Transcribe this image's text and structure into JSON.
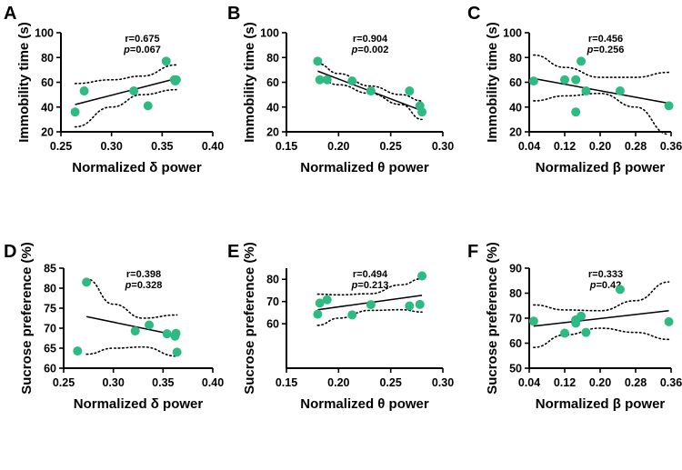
{
  "colors": {
    "point": "#2dbb83",
    "line": "#000000"
  },
  "chart_data": [
    {
      "panel": "A",
      "type": "scatter",
      "xlabel": "Normalized δ power",
      "ylabel": "Immobility time (s)",
      "xlim": [
        0.25,
        0.4
      ],
      "ylim": [
        20,
        100
      ],
      "xticks": [
        "0.25",
        "0.30",
        "0.35",
        "0.40"
      ],
      "xtick_values": [
        0.25,
        0.3,
        0.35,
        0.4
      ],
      "yticks": [
        "20",
        "40",
        "60",
        "80",
        "100"
      ],
      "ytick_values": [
        20,
        40,
        60,
        80,
        100
      ],
      "r_label": "r=0.675",
      "p_label": "=0.067",
      "points": [
        [
          0.264,
          36
        ],
        [
          0.273,
          53
        ],
        [
          0.322,
          53
        ],
        [
          0.336,
          41
        ],
        [
          0.354,
          77
        ],
        [
          0.362,
          62
        ],
        [
          0.363,
          61
        ],
        [
          0.364,
          62
        ]
      ],
      "fit": {
        "x": [
          0.264,
          0.364
        ],
        "y": [
          42,
          63
        ]
      },
      "ci_upper": {
        "x": [
          0.264,
          0.3,
          0.33,
          0.364
        ],
        "y": [
          59,
          62,
          65,
          74
        ]
      },
      "ci_lower": {
        "x": [
          0.264,
          0.3,
          0.33,
          0.364
        ],
        "y": [
          24,
          40,
          50,
          54
        ]
      }
    },
    {
      "panel": "B",
      "type": "scatter",
      "xlabel": "Normalized θ power",
      "ylabel": "Immobility time (s)",
      "xlim": [
        0.15,
        0.3
      ],
      "ylim": [
        20,
        100
      ],
      "xticks": [
        "0.15",
        "0.20",
        "0.25",
        "0.30"
      ],
      "xtick_values": [
        0.15,
        0.2,
        0.25,
        0.3
      ],
      "yticks": [
        "20",
        "40",
        "60",
        "80",
        "100"
      ],
      "ytick_values": [
        20,
        40,
        60,
        80,
        100
      ],
      "r_label": "r=0.904",
      "p_label": "=0.002",
      "points": [
        [
          0.18,
          77
        ],
        [
          0.182,
          62
        ],
        [
          0.189,
          62
        ],
        [
          0.213,
          61
        ],
        [
          0.231,
          53
        ],
        [
          0.268,
          53
        ],
        [
          0.278,
          41
        ],
        [
          0.28,
          36
        ]
      ],
      "fit": {
        "x": [
          0.18,
          0.28
        ],
        "y": [
          69,
          37
        ]
      },
      "ci_upper": {
        "x": [
          0.18,
          0.2,
          0.23,
          0.26,
          0.28
        ],
        "y": [
          75,
          67,
          57,
          50,
          45
        ]
      },
      "ci_lower": {
        "x": [
          0.18,
          0.2,
          0.23,
          0.26,
          0.28
        ],
        "y": [
          63,
          58,
          51,
          42,
          30
        ]
      }
    },
    {
      "panel": "C",
      "type": "scatter",
      "xlabel": "Normalized β power",
      "ylabel": "Immobility time (s)",
      "xlim": [
        0.04,
        0.36
      ],
      "ylim": [
        20,
        100
      ],
      "xticks": [
        "0.04",
        "0.12",
        "0.20",
        "0.28",
        "0.36"
      ],
      "xtick_values": [
        0.04,
        0.12,
        0.2,
        0.28,
        0.36
      ],
      "yticks": [
        "20",
        "40",
        "60",
        "80",
        "100"
      ],
      "ytick_values": [
        20,
        40,
        60,
        80,
        100
      ],
      "r_label": "r=0.456",
      "p_label": "=0.256",
      "points": [
        [
          0.05,
          61
        ],
        [
          0.12,
          62
        ],
        [
          0.145,
          62
        ],
        [
          0.145,
          36
        ],
        [
          0.157,
          77
        ],
        [
          0.168,
          53
        ],
        [
          0.245,
          53
        ],
        [
          0.355,
          41
        ]
      ],
      "fit": {
        "x": [
          0.05,
          0.355
        ],
        "y": [
          63,
          43
        ]
      },
      "ci_upper": {
        "x": [
          0.05,
          0.12,
          0.2,
          0.28,
          0.355
        ],
        "y": [
          82,
          72,
          64,
          64,
          68
        ]
      },
      "ci_lower": {
        "x": [
          0.05,
          0.12,
          0.2,
          0.28,
          0.355
        ],
        "y": [
          45,
          49,
          51,
          40,
          18
        ]
      }
    },
    {
      "panel": "D",
      "type": "scatter",
      "xlabel": "Normalized δ power",
      "ylabel": "Sucrose preference (%)",
      "xlim": [
        0.25,
        0.4
      ],
      "ylim": [
        60,
        85
      ],
      "xticks": [
        "0.25",
        "0.30",
        "0.35",
        "0.40"
      ],
      "xtick_values": [
        0.25,
        0.3,
        0.35,
        0.4
      ],
      "yticks": [
        "60",
        "65",
        "70",
        "75",
        "80",
        "85"
      ],
      "ytick_values": [
        60,
        65,
        70,
        75,
        80,
        85
      ],
      "r_label": "r=0.398",
      "p_label": "=0.328",
      "points": [
        [
          0.264,
          64.3
        ],
        [
          0.273,
          81.5
        ],
        [
          0.322,
          69.3
        ],
        [
          0.336,
          70.8
        ],
        [
          0.354,
          68.6
        ],
        [
          0.362,
          68.0
        ],
        [
          0.363,
          68.7
        ],
        [
          0.364,
          64.0
        ]
      ],
      "fit": {
        "x": [
          0.273,
          0.364
        ],
        "y": [
          72.9,
          68.2
        ]
      },
      "ci_upper": {
        "x": [
          0.273,
          0.3,
          0.33,
          0.364
        ],
        "y": [
          82.3,
          76.0,
          72.5,
          73.3
        ]
      },
      "ci_lower": {
        "x": [
          0.273,
          0.3,
          0.33,
          0.364
        ],
        "y": [
          63.5,
          65.0,
          65.3,
          63.0
        ]
      }
    },
    {
      "panel": "E",
      "type": "scatter",
      "xlabel": "Normalized θ power",
      "ylabel": "Sucrose preference (%)",
      "xlim": [
        0.15,
        0.3
      ],
      "ylim": [
        40,
        85
      ],
      "xticks": [
        "0.15",
        "0.20",
        "0.25",
        "0.30"
      ],
      "xtick_values": [
        0.15,
        0.2,
        0.25,
        0.3
      ],
      "yticks": [
        "60",
        "70",
        "80"
      ],
      "ytick_values": [
        60,
        70,
        80
      ],
      "r_label": "r=0.494",
      "p_label": "=0.213",
      "points": [
        [
          0.18,
          64.3
        ],
        [
          0.182,
          69.3
        ],
        [
          0.189,
          70.8
        ],
        [
          0.213,
          64.0
        ],
        [
          0.231,
          68.6
        ],
        [
          0.268,
          68.0
        ],
        [
          0.278,
          68.7
        ],
        [
          0.28,
          81.5
        ]
      ],
      "fit": {
        "x": [
          0.18,
          0.28
        ],
        "y": [
          66.3,
          72.8
        ]
      },
      "ci_upper": {
        "x": [
          0.18,
          0.2,
          0.23,
          0.26,
          0.28
        ],
        "y": [
          73.3,
          73.0,
          73.5,
          77.5,
          80.3
        ]
      },
      "ci_lower": {
        "x": [
          0.18,
          0.2,
          0.23,
          0.26,
          0.28
        ],
        "y": [
          59.3,
          62.5,
          66.0,
          66.3,
          65.3
        ]
      }
    },
    {
      "panel": "F",
      "type": "scatter",
      "xlabel": "Normalized β power",
      "ylabel": "Sucrose preference (%)",
      "xlim": [
        0.04,
        0.36
      ],
      "ylim": [
        50,
        90
      ],
      "xticks": [
        "0.04",
        "0.12",
        "0.20",
        "0.28",
        "0.36"
      ],
      "xtick_values": [
        0.04,
        0.12,
        0.2,
        0.28,
        0.36
      ],
      "yticks": [
        "50",
        "60",
        "70",
        "80",
        "90"
      ],
      "ytick_values": [
        50,
        60,
        70,
        80,
        90
      ],
      "r_label": "r=0.333",
      "p_label": "=0.42",
      "points": [
        [
          0.05,
          68.8
        ],
        [
          0.12,
          64.0
        ],
        [
          0.145,
          69.3
        ],
        [
          0.145,
          68.0
        ],
        [
          0.157,
          70.8
        ],
        [
          0.168,
          64.3
        ],
        [
          0.245,
          81.5
        ],
        [
          0.355,
          68.6
        ]
      ],
      "fit": {
        "x": [
          0.05,
          0.355
        ],
        "y": [
          66.8,
          73.0
        ]
      },
      "ci_upper": {
        "x": [
          0.05,
          0.12,
          0.2,
          0.28,
          0.355
        ],
        "y": [
          75.3,
          73.3,
          73.0,
          77.0,
          84.5
        ]
      },
      "ci_lower": {
        "x": [
          0.05,
          0.12,
          0.2,
          0.28,
          0.355
        ],
        "y": [
          58.3,
          63.3,
          66.0,
          64.3,
          61.5
        ]
      }
    }
  ]
}
